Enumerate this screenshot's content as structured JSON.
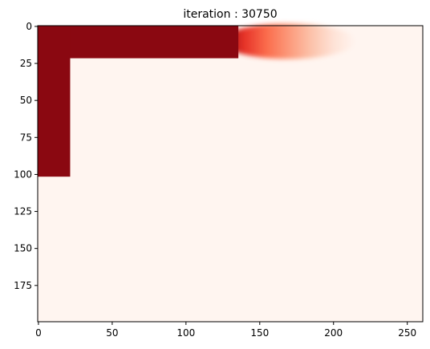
{
  "chart_data": {
    "type": "heatmap",
    "title": "iteration : 30750",
    "xlabel": "",
    "ylabel": "",
    "colormap": "Reds",
    "color_low": "#fff5f0",
    "color_high": "#67000d",
    "grid": false,
    "legend": "none",
    "x_range": [
      -0.5,
      260.5
    ],
    "y_range": [
      199.5,
      -0.5
    ],
    "y_inverted": true,
    "x_ticks": [
      0,
      50,
      100,
      150,
      200,
      250
    ],
    "y_ticks": [
      0,
      25,
      50,
      75,
      100,
      125,
      150,
      175
    ],
    "field": {
      "value_min": 0,
      "value_max": 1,
      "background_value": 0.0,
      "regions": [
        {
          "name": "top-channel",
          "x": [
            0,
            135
          ],
          "y": [
            0,
            21
          ],
          "value": 1.0
        },
        {
          "name": "left-channel",
          "x": [
            0,
            21
          ],
          "y": [
            0,
            101
          ],
          "value": 1.0
        }
      ],
      "plume": {
        "x_start": 133,
        "x_end": 215,
        "y_center": 10,
        "half_width": 12,
        "value_start": 0.92,
        "value_end": 0.0
      }
    }
  }
}
